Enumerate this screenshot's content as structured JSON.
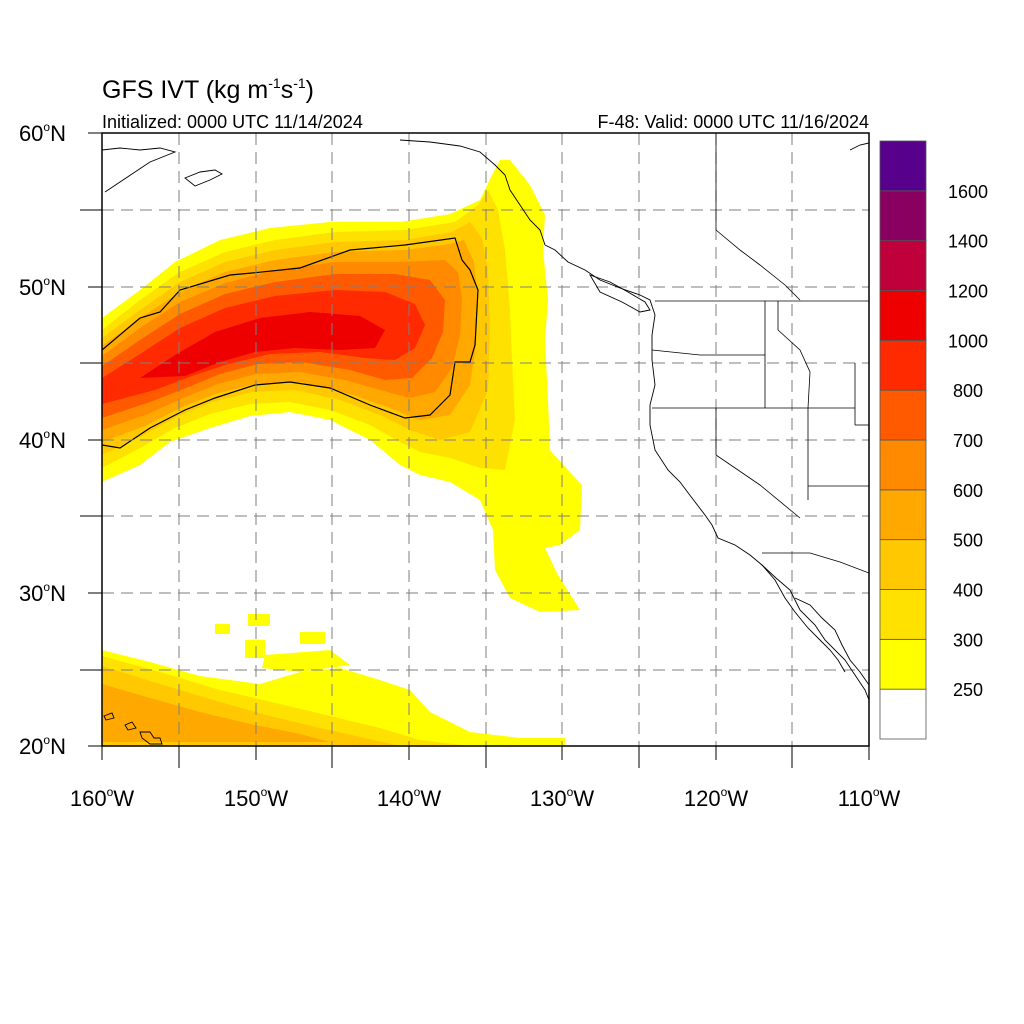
{
  "title": {
    "main": "GFS IVT (kg m",
    "sup1": "-1",
    "mid": "s",
    "sup2": "-1",
    "close": ")"
  },
  "subtitle_left": "Initialized: 0000 UTC 11/14/2024",
  "subtitle_right": "F-48: Valid: 0000 UTC 11/16/2024",
  "map": {
    "lon_range": [
      -160,
      -110
    ],
    "lat_range": [
      20,
      60
    ],
    "lat_labels": [
      {
        "lat": 60,
        "num": "60",
        "hem": "N"
      },
      {
        "lat": 50,
        "num": "50",
        "hem": "N"
      },
      {
        "lat": 40,
        "num": "40",
        "hem": "N"
      },
      {
        "lat": 30,
        "num": "30",
        "hem": "N"
      },
      {
        "lat": 20,
        "num": "20",
        "hem": "N"
      }
    ],
    "lon_labels": [
      {
        "lon": -160,
        "num": "160",
        "hem": "W"
      },
      {
        "lon": -150,
        "num": "150",
        "hem": "W"
      },
      {
        "lon": -140,
        "num": "140",
        "hem": "W"
      },
      {
        "lon": -130,
        "num": "130",
        "hem": "W"
      },
      {
        "lon": -120,
        "num": "120",
        "hem": "W"
      },
      {
        "lon": -110,
        "num": "110",
        "hem": "W"
      }
    ],
    "grid_lats": [
      25,
      30,
      35,
      40,
      45,
      50,
      55
    ],
    "grid_lons": [
      -155,
      -150,
      -145,
      -140,
      -135,
      -130,
      -125,
      -120,
      -115
    ]
  },
  "colorbar": {
    "labels": [
      "250",
      "300",
      "400",
      "500",
      "600",
      "700",
      "800",
      "1000",
      "1200",
      "1400",
      "1600"
    ],
    "colors": [
      "#ffffff",
      "#ffff00",
      "#ffe100",
      "#ffc800",
      "#ffa800",
      "#ff8a00",
      "#ff5a00",
      "#ff2a00",
      "#ee0000",
      "#c0003a",
      "#8a0060",
      "#56008c"
    ]
  },
  "colors": {
    "ivt_250": "#ffff00",
    "ivt_300": "#ffe100",
    "ivt_400": "#ffc800",
    "ivt_500": "#ffa800",
    "ivt_600": "#ff8a00",
    "ivt_700": "#ff5a00",
    "ivt_800": "#ff2a00",
    "ivt_1000": "#ee0000"
  }
}
